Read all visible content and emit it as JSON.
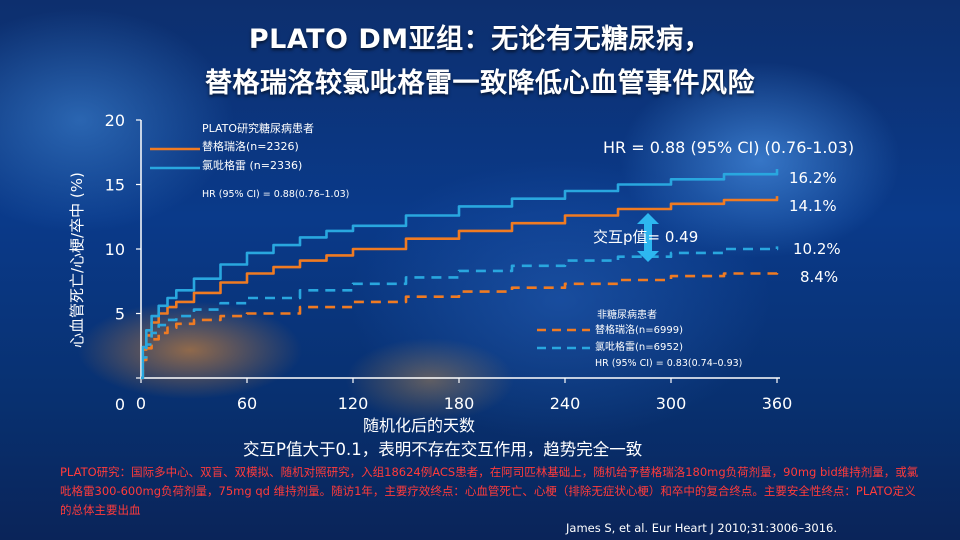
{
  "title_line1": "PLATO DM亚组：无论有无糖尿病，",
  "title_line2": "替格瑞洛较氯吡格雷一致降低心血管事件风险",
  "chart_data": {
    "type": "line",
    "ylabel": "心血管死亡/心梗/卒中 (%)",
    "xlabel": "随机化后的天数",
    "xlim": [
      0,
      360
    ],
    "ylim": [
      0,
      20
    ],
    "xticks": [
      0,
      60,
      120,
      180,
      240,
      300,
      360
    ],
    "yticks": [
      0,
      5,
      10,
      15,
      20
    ],
    "xtick_labels": [
      "0",
      "60",
      "120",
      "180",
      "240",
      "300",
      "360"
    ],
    "ytick_labels": [
      "0",
      "5",
      "10",
      "15",
      "20"
    ],
    "legend_top": {
      "heading": "PLATO研究糖尿病患者",
      "items": [
        "替格瑞洛(n=2326)",
        "氯吡格雷  (n=2336)"
      ],
      "hr": "HR (95% CI) = 0.88(0.76–1.03)"
    },
    "legend_bottom": {
      "heading": "非糖尿病患者",
      "items": [
        "替格瑞洛(n=6999)",
        "氯吡格雷(n=6952)"
      ],
      "hr": "HR (95% CI) = 0.83(0.74–0.93)"
    },
    "hr_big": "HR  = 0.88 (95% CI)  (0.76-1.03)",
    "interaction": "交互p值= 0.49",
    "end_labels": [
      "16.2%",
      "14.1%",
      "10.2%",
      "8.4%"
    ],
    "series": [
      {
        "name": "替格瑞洛(n=2326)",
        "color": "#f07b22",
        "dash": false,
        "x": [
          0,
          1,
          3,
          6,
          10,
          15,
          20,
          30,
          45,
          60,
          75,
          90,
          105,
          120,
          150,
          180,
          210,
          240,
          270,
          300,
          330,
          360
        ],
        "y": [
          0,
          2.2,
          3.3,
          4.3,
          5.0,
          5.5,
          5.9,
          6.6,
          7.4,
          8.1,
          8.6,
          9.1,
          9.5,
          10.0,
          10.8,
          11.4,
          12.0,
          12.6,
          13.1,
          13.5,
          13.8,
          14.1
        ]
      },
      {
        "name": "氯吡格雷  (n=2336)",
        "color": "#29a7df",
        "dash": false,
        "x": [
          0,
          1,
          3,
          6,
          10,
          15,
          20,
          30,
          45,
          60,
          75,
          90,
          105,
          120,
          150,
          180,
          210,
          240,
          270,
          300,
          330,
          360
        ],
        "y": [
          0,
          2.4,
          3.7,
          4.8,
          5.6,
          6.2,
          6.8,
          7.7,
          8.8,
          9.7,
          10.3,
          10.9,
          11.4,
          11.8,
          12.6,
          13.3,
          13.9,
          14.5,
          15.0,
          15.4,
          15.8,
          16.2
        ]
      },
      {
        "name": "替格瑞洛(n=6999)",
        "color": "#f07b22",
        "dash": true,
        "x": [
          0,
          1,
          3,
          6,
          10,
          15,
          20,
          30,
          45,
          60,
          90,
          120,
          150,
          180,
          210,
          240,
          270,
          300,
          330,
          360
        ],
        "y": [
          0,
          1.4,
          2.3,
          3.0,
          3.5,
          3.9,
          4.2,
          4.5,
          4.8,
          5.0,
          5.5,
          5.9,
          6.3,
          6.7,
          7.0,
          7.3,
          7.6,
          7.9,
          8.1,
          8.4
        ]
      },
      {
        "name": "氯吡格雷(n=6952)",
        "color": "#29a7df",
        "dash": true,
        "x": [
          0,
          1,
          3,
          6,
          10,
          15,
          20,
          30,
          45,
          60,
          90,
          120,
          150,
          180,
          210,
          240,
          270,
          300,
          330,
          360
        ],
        "y": [
          0,
          1.6,
          2.6,
          3.5,
          4.1,
          4.5,
          4.8,
          5.3,
          5.8,
          6.2,
          6.8,
          7.3,
          7.8,
          8.3,
          8.7,
          9.1,
          9.4,
          9.7,
          10.0,
          10.2
        ]
      }
    ]
  },
  "subtitle": "交互P值大于0.1，表明不存在交互作用，趋势完全一致",
  "study_text": "PLATO研究：国际多中心、双盲、双模拟、随机对照研究，入组18624例ACS患者，在阿司匹林基础上，随机给予替格瑞洛180mg负荷剂量，90mg bid维持剂量，或氯吡格雷300-600mg负荷剂量，75mg  qd 维持剂量。随访1年，主要疗效终点：心血管死亡、心梗（排除无症状心梗）和卒中的复合终点。主要安全性终点：PLATO定义的总体主要出血",
  "reference": "James S, et al. Eur Heart J 2010;31:3006–3016."
}
